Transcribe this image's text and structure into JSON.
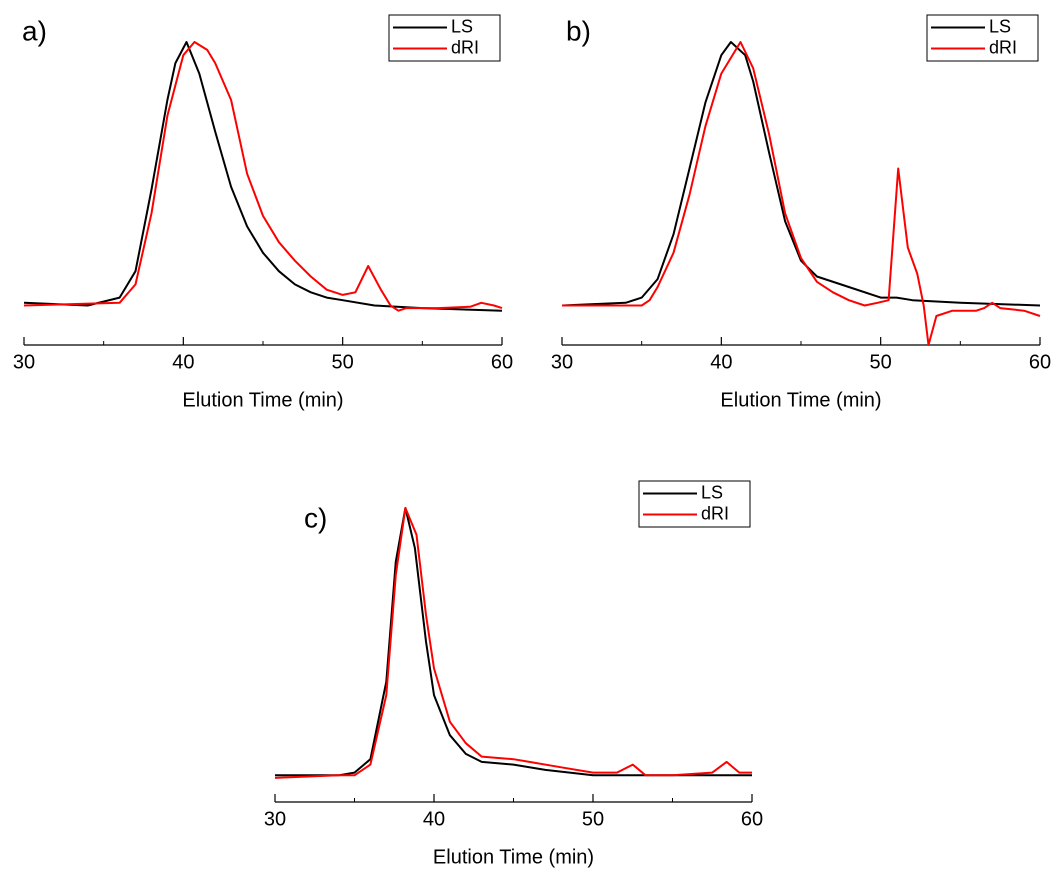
{
  "chart_data": [
    {
      "type": "line",
      "panel_label": "a)",
      "xlabel": "Elution Time (min)",
      "xlim": [
        30,
        60
      ],
      "xticks": [
        30,
        40,
        50,
        60
      ],
      "xminorticks": [
        35,
        45,
        55
      ],
      "ylim": [
        -0.15,
        1.0
      ],
      "legend": "upper right",
      "series": [
        {
          "name": "LS",
          "color": "#000000",
          "x": [
            30,
            34,
            36,
            37,
            38,
            39,
            39.5,
            40.2,
            41,
            42,
            43,
            44,
            45,
            46,
            47,
            48,
            49,
            50,
            52,
            55,
            60
          ],
          "values": [
            0.01,
            0.0,
            0.03,
            0.13,
            0.44,
            0.78,
            0.92,
            1.0,
            0.88,
            0.66,
            0.45,
            0.3,
            0.2,
            0.13,
            0.08,
            0.05,
            0.03,
            0.02,
            0.0,
            -0.01,
            -0.02
          ]
        },
        {
          "name": "dRI",
          "color": "#ff0000",
          "x": [
            30,
            36,
            37,
            38,
            39,
            40,
            40.7,
            41.5,
            42,
            43,
            44,
            45,
            46,
            47,
            48,
            49,
            50,
            50.8,
            51.6,
            52.4,
            53,
            53.5,
            54,
            56,
            58,
            58.7,
            59.5,
            60
          ],
          "values": [
            0.0,
            0.01,
            0.08,
            0.35,
            0.72,
            0.95,
            1.0,
            0.97,
            0.92,
            0.78,
            0.5,
            0.34,
            0.24,
            0.17,
            0.11,
            0.06,
            0.04,
            0.05,
            0.15,
            0.06,
            0.0,
            -0.02,
            -0.01,
            -0.01,
            -0.005,
            0.01,
            0.0,
            -0.01
          ]
        }
      ]
    },
    {
      "type": "line",
      "panel_label": "b)",
      "xlabel": "Elution Time (min)",
      "xlim": [
        30,
        60
      ],
      "xticks": [
        30,
        40,
        50,
        60
      ],
      "xminorticks": [
        35,
        45,
        55
      ],
      "ylim": [
        -0.15,
        1.0
      ],
      "legend": "upper right",
      "series": [
        {
          "name": "LS",
          "color": "#000000",
          "x": [
            30,
            34,
            35,
            36,
            37,
            38,
            39,
            40,
            40.6,
            41.5,
            42,
            43,
            44,
            45,
            46,
            48,
            50,
            51,
            52,
            55,
            60
          ],
          "values": [
            0.0,
            0.01,
            0.03,
            0.1,
            0.27,
            0.52,
            0.77,
            0.95,
            1.0,
            0.95,
            0.85,
            0.58,
            0.32,
            0.17,
            0.11,
            0.07,
            0.03,
            0.03,
            0.02,
            0.01,
            0.0
          ]
        },
        {
          "name": "dRI",
          "color": "#ff0000",
          "x": [
            30,
            35,
            35.5,
            36,
            37,
            38,
            39,
            40,
            41.2,
            42,
            43,
            44,
            45,
            46,
            47,
            48,
            49,
            49.8,
            50.5,
            51.1,
            51.7,
            52.3,
            52.7,
            53,
            53.5,
            54.5,
            56,
            56.5,
            57,
            57.5,
            59,
            60
          ],
          "values": [
            0.0,
            0.0,
            0.02,
            0.07,
            0.2,
            0.42,
            0.68,
            0.88,
            1.0,
            0.9,
            0.65,
            0.35,
            0.18,
            0.09,
            0.05,
            0.02,
            0.0,
            0.01,
            0.02,
            0.52,
            0.22,
            0.12,
            0.0,
            -0.15,
            -0.04,
            -0.02,
            -0.02,
            -0.01,
            0.01,
            -0.01,
            -0.02,
            -0.04
          ]
        }
      ]
    },
    {
      "type": "line",
      "panel_label": "c)",
      "xlabel": "Elution Time (min)",
      "xlim": [
        30,
        60
      ],
      "xticks": [
        30,
        40,
        50,
        60
      ],
      "xminorticks": [
        35,
        45,
        55
      ],
      "ylim": [
        -0.1,
        1.0
      ],
      "legend": "upper right",
      "series": [
        {
          "name": "LS",
          "color": "#000000",
          "x": [
            30,
            34,
            35,
            36,
            37,
            37.6,
            38.2,
            38.8,
            39.5,
            40,
            41,
            42,
            43,
            45,
            47,
            50,
            60
          ],
          "values": [
            0.0,
            0.0,
            0.01,
            0.06,
            0.35,
            0.8,
            1.0,
            0.85,
            0.5,
            0.3,
            0.15,
            0.08,
            0.05,
            0.04,
            0.02,
            0.0,
            0.0
          ]
        },
        {
          "name": "dRI",
          "color": "#ff0000",
          "x": [
            30,
            34,
            35,
            36,
            37,
            37.6,
            38.2,
            38.9,
            39.5,
            40,
            41,
            42,
            43,
            45,
            46,
            48,
            50,
            51.5,
            52.5,
            53.3,
            55,
            57.5,
            58.4,
            59.2,
            60
          ],
          "values": [
            -0.01,
            0.0,
            0.0,
            0.04,
            0.3,
            0.75,
            1.0,
            0.9,
            0.6,
            0.4,
            0.2,
            0.12,
            0.07,
            0.06,
            0.05,
            0.03,
            0.01,
            0.01,
            0.04,
            0.0,
            0.0,
            0.01,
            0.05,
            0.01,
            0.01
          ]
        }
      ]
    }
  ]
}
